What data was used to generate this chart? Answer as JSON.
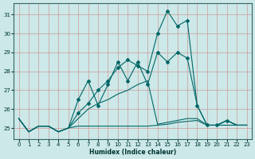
{
  "xlabel": "Humidex (Indice chaleur)",
  "bg_color": "#cce8e8",
  "grid_color": "#cc9999",
  "line_color": "#006666",
  "xlim": [
    -0.5,
    23.5
  ],
  "ylim": [
    24.4,
    31.6
  ],
  "yticks": [
    25,
    26,
    27,
    28,
    29,
    30,
    31
  ],
  "xticks": [
    0,
    1,
    2,
    3,
    4,
    5,
    6,
    7,
    8,
    9,
    10,
    11,
    12,
    13,
    14,
    15,
    16,
    17,
    18,
    19,
    20,
    21,
    22,
    23
  ],
  "line_main": [
    25.5,
    24.8,
    25.1,
    25.1,
    24.8,
    25.0,
    25.8,
    26.3,
    27.0,
    27.5,
    28.2,
    28.6,
    28.3,
    28.0,
    30.0,
    31.2,
    30.4,
    30.7,
    26.2,
    25.15,
    25.15,
    25.4,
    25.15,
    25.15
  ],
  "line_jagged": [
    25.5,
    24.8,
    25.1,
    25.1,
    24.8,
    25.0,
    26.5,
    27.5,
    26.2,
    27.3,
    28.5,
    27.5,
    28.5,
    27.3,
    29.0,
    28.5,
    29.0,
    28.7,
    26.2,
    25.15,
    25.15,
    25.4,
    25.15,
    25.15
  ],
  "line_rising": [
    25.5,
    24.8,
    25.1,
    25.1,
    24.8,
    25.0,
    25.5,
    26.0,
    26.3,
    26.5,
    26.8,
    27.0,
    27.3,
    27.5,
    25.2,
    25.3,
    25.4,
    25.5,
    25.5,
    25.15,
    25.15,
    25.4,
    25.15,
    25.15
  ],
  "line_flat": [
    25.5,
    24.8,
    25.1,
    25.1,
    24.8,
    25.0,
    25.1,
    25.1,
    25.1,
    25.1,
    25.1,
    25.1,
    25.1,
    25.1,
    25.15,
    25.2,
    25.3,
    25.35,
    25.4,
    25.15,
    25.15,
    25.15,
    25.15,
    25.15
  ],
  "markers_main": [
    6,
    7,
    8,
    9,
    10,
    11,
    12,
    13,
    14,
    15,
    16,
    17,
    18,
    19,
    20,
    21
  ],
  "markers_jagged": [
    6,
    7,
    8,
    9,
    10,
    11,
    12,
    13,
    14,
    15,
    16,
    17
  ]
}
